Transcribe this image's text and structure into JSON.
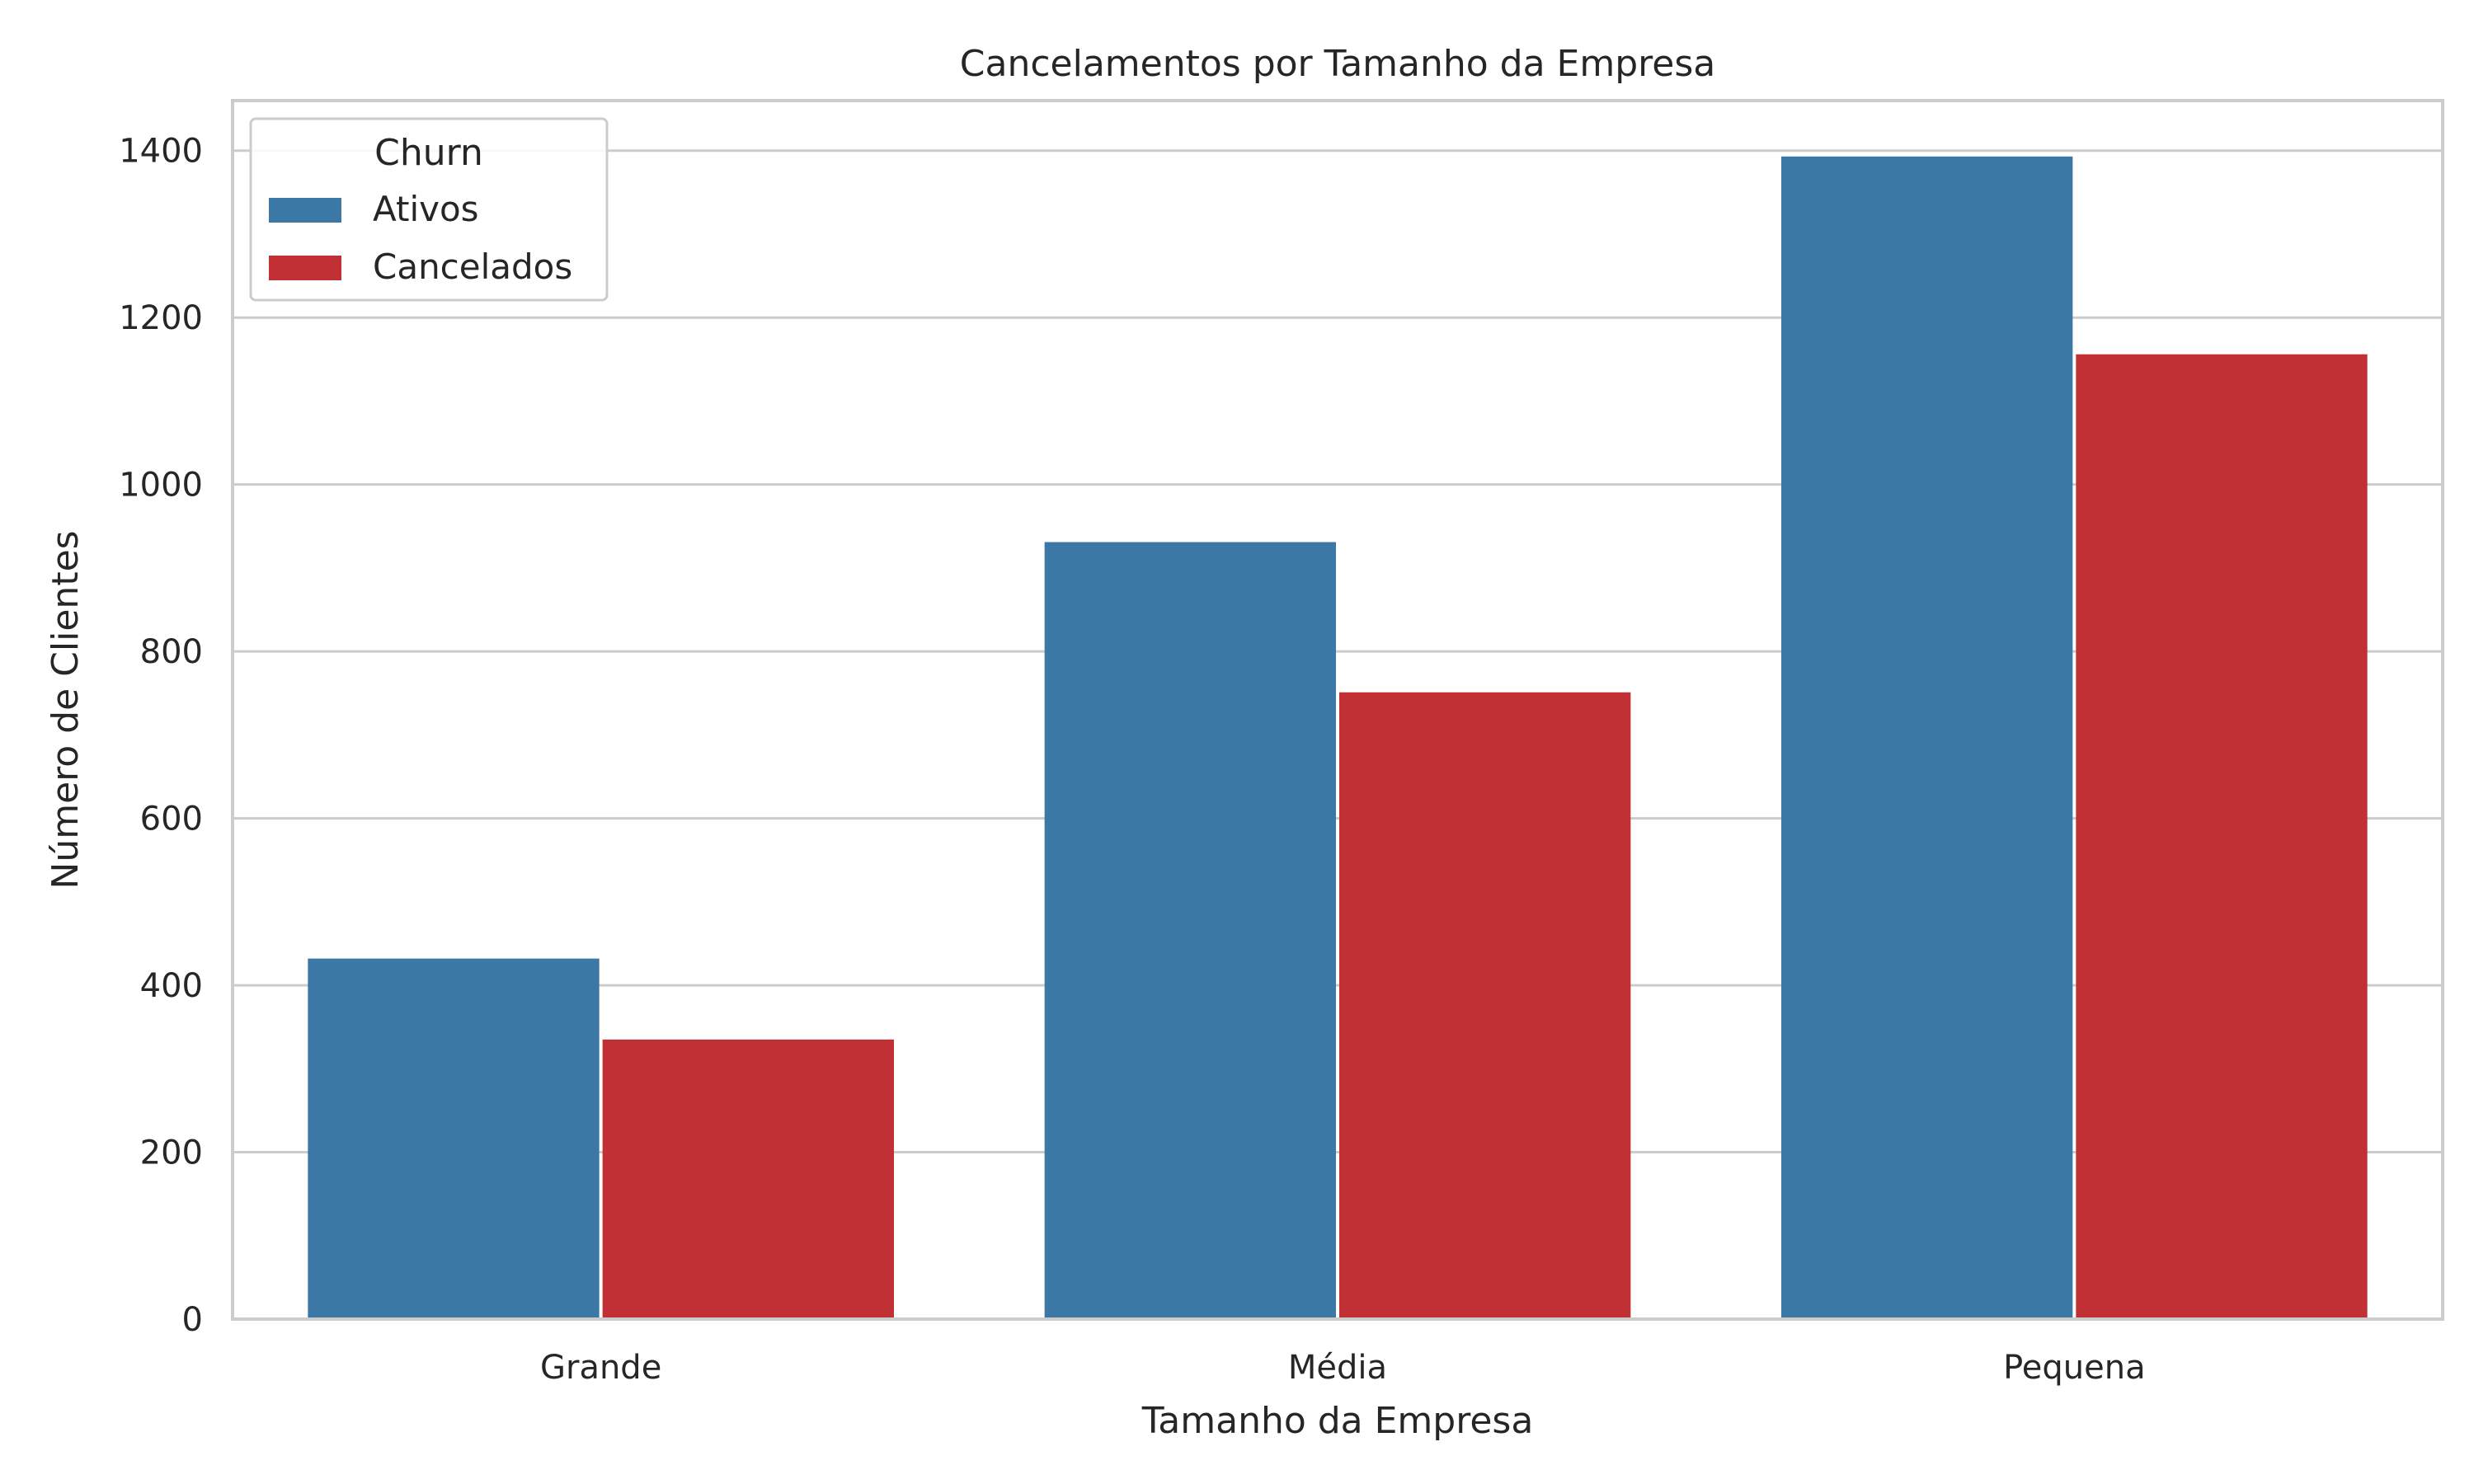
{
  "chart_data": {
    "type": "bar",
    "title": "Cancelamentos por Tamanho da Empresa",
    "xlabel": "Tamanho da Empresa",
    "ylabel": "Número de Clientes",
    "categories": [
      "Grande",
      "Média",
      "Pequena"
    ],
    "series": [
      {
        "name": "Ativos",
        "color": "#3c78a6",
        "values": [
          432,
          931,
          1393
        ]
      },
      {
        "name": "Cancelados",
        "color": "#c03035",
        "values": [
          335,
          751,
          1156
        ]
      }
    ],
    "ylim": [
      0,
      1460
    ],
    "yticks": [
      0,
      200,
      400,
      600,
      800,
      1000,
      1200,
      1400
    ],
    "grid": true,
    "legend": {
      "title": "Churn",
      "placement": "top-left"
    }
  }
}
